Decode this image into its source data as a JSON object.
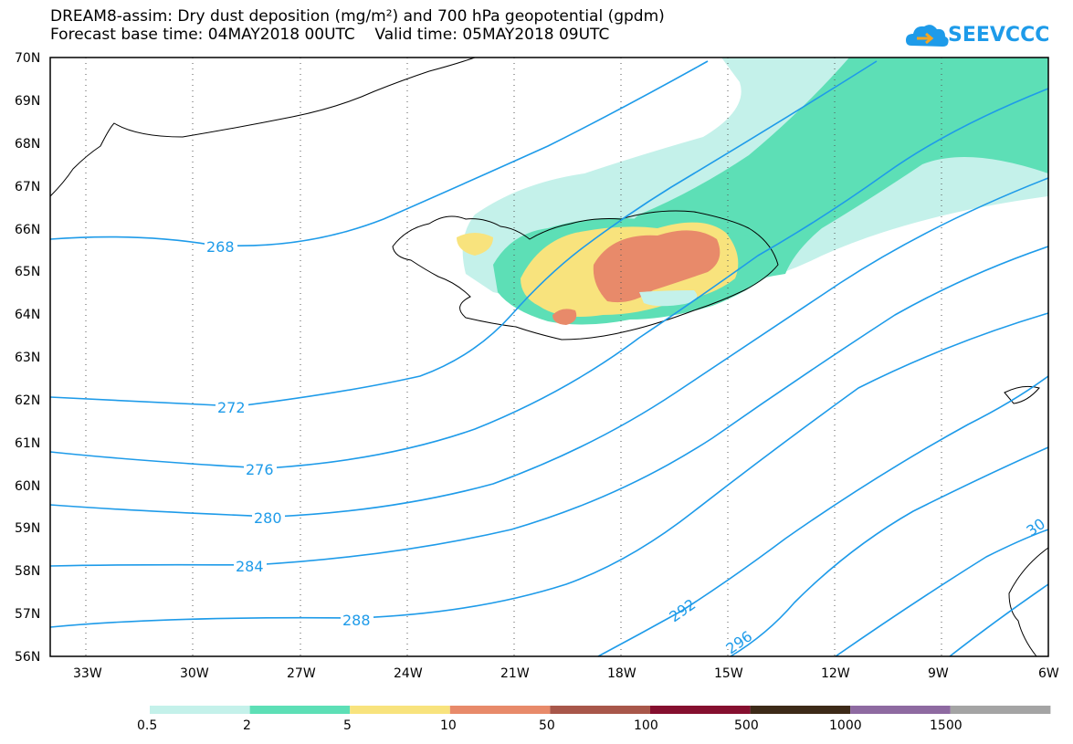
{
  "header": {
    "title_line1": "DREAM8-assim: Dry dust deposition (mg/m²) and 700 hPa geopotential (gpdm)",
    "title_line2": "Forecast base time: 04MAY2018 00UTC    Valid time: 05MAY2018 09UTC",
    "logo_text": "SEEVCCC"
  },
  "map": {
    "lat_labels": [
      "70N",
      "69N",
      "68N",
      "67N",
      "66N",
      "65N",
      "64N",
      "63N",
      "62N",
      "61N",
      "60N",
      "59N",
      "58N",
      "57N",
      "56N"
    ],
    "lon_labels": [
      "33W",
      "30W",
      "27W",
      "24W",
      "21W",
      "18W",
      "15W",
      "12W",
      "9W",
      "6W"
    ],
    "contour_labels": [
      "268",
      "272",
      "276",
      "280",
      "284",
      "288",
      "292",
      "296",
      "30"
    ],
    "contour_color": "#1e9be9"
  },
  "legend": {
    "labels": [
      "0.5",
      "2",
      "5",
      "10",
      "50",
      "100",
      "500",
      "1000",
      "1500"
    ],
    "colors": [
      "#c4f1ea",
      "#5ddfb6",
      "#f8e37d",
      "#e88a6a",
      "#a8574a",
      "#850f2f",
      "#3d2a18",
      "#8e6aa1",
      "#a4a4a4"
    ]
  }
}
